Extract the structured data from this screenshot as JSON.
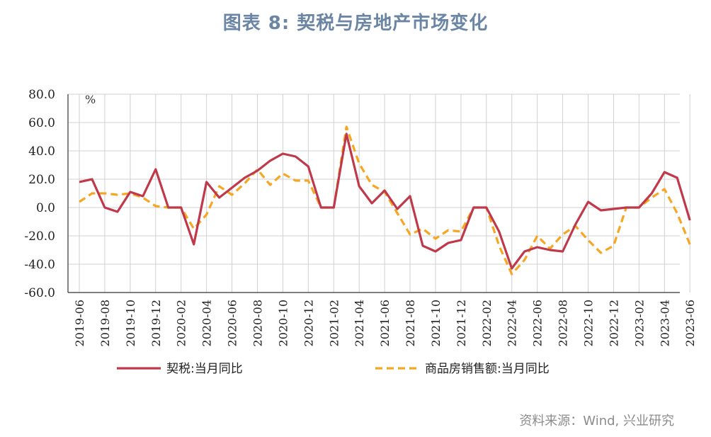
{
  "header": {
    "title": "图表 8: 契税与房地产市场变化"
  },
  "footer": {
    "source": "资料来源：Wind, 兴业研究"
  },
  "colors": {
    "series1": "#c0394b",
    "series2": "#f5a623",
    "grid": "#d0d0d0",
    "axis": "#333333"
  },
  "chart_data": {
    "type": "line",
    "unit_label": "%",
    "ylim": [
      -60,
      80
    ],
    "yticks": [
      "80.0",
      "60.0",
      "40.0",
      "20.0",
      "0.0",
      "-20.0",
      "-40.0",
      "-60.0"
    ],
    "ytick_values": [
      80,
      60,
      40,
      20,
      0,
      -20,
      -40,
      -60
    ],
    "x": [
      "2019-06",
      "2019-07",
      "2019-08",
      "2019-09",
      "2019-10",
      "2019-11",
      "2019-12",
      "2020-01",
      "2020-02",
      "2020-03",
      "2020-04",
      "2020-05",
      "2020-06",
      "2020-07",
      "2020-08",
      "2020-09",
      "2020-10",
      "2020-11",
      "2020-12",
      "2021-01",
      "2021-02",
      "2021-03",
      "2021-04",
      "2021-05",
      "2021-06",
      "2021-07",
      "2021-08",
      "2021-09",
      "2021-10",
      "2021-11",
      "2021-12",
      "2022-01",
      "2022-02",
      "2022-03",
      "2022-04",
      "2022-05",
      "2022-06",
      "2022-07",
      "2022-08",
      "2022-09",
      "2022-10",
      "2022-11",
      "2022-12",
      "2023-01",
      "2023-02",
      "2023-03",
      "2023-04",
      "2023-05",
      "2023-06"
    ],
    "xtick_labels": [
      "2019-06",
      "2019-08",
      "2019-10",
      "2019-12",
      "2020-02",
      "2020-04",
      "2020-06",
      "2020-08",
      "2020-10",
      "2020-12",
      "2021-02",
      "2021-04",
      "2021-06",
      "2021-08",
      "2021-10",
      "2021-12",
      "2022-02",
      "2022-04",
      "2022-06",
      "2022-08",
      "2022-10",
      "2022-12",
      "2023-02",
      "2023-04",
      "2023-06"
    ],
    "grid": true,
    "legend_position": "bottom",
    "series": [
      {
        "name": "契税:当月同比",
        "style": "solid",
        "values": [
          18,
          20,
          0,
          -3,
          11,
          8,
          27,
          0,
          0,
          -26,
          18,
          7,
          14,
          21,
          26,
          33,
          38,
          36,
          29,
          0,
          0,
          52,
          15,
          3,
          12,
          -1,
          8,
          -27,
          -31,
          -25,
          -23,
          0,
          0,
          -17,
          -43,
          -31,
          -28,
          -30,
          -31,
          -12,
          4,
          -2,
          -1,
          0,
          0,
          10,
          25,
          21,
          -9
        ]
      },
      {
        "name": "商品房销售额:当月同比",
        "style": "dashed",
        "values": [
          4,
          10,
          10,
          9,
          10,
          7,
          1,
          0,
          0,
          -15,
          -5,
          15,
          9,
          17,
          27,
          16,
          24,
          19,
          19,
          0,
          0,
          57,
          31,
          16,
          11,
          -4,
          -19,
          -15,
          -22,
          -16,
          -17,
          0,
          0,
          -27,
          -47,
          -37,
          -20,
          -29,
          -19,
          -13,
          -23,
          -32,
          -27,
          0,
          0,
          7,
          13,
          -4,
          -26
        ]
      }
    ]
  }
}
